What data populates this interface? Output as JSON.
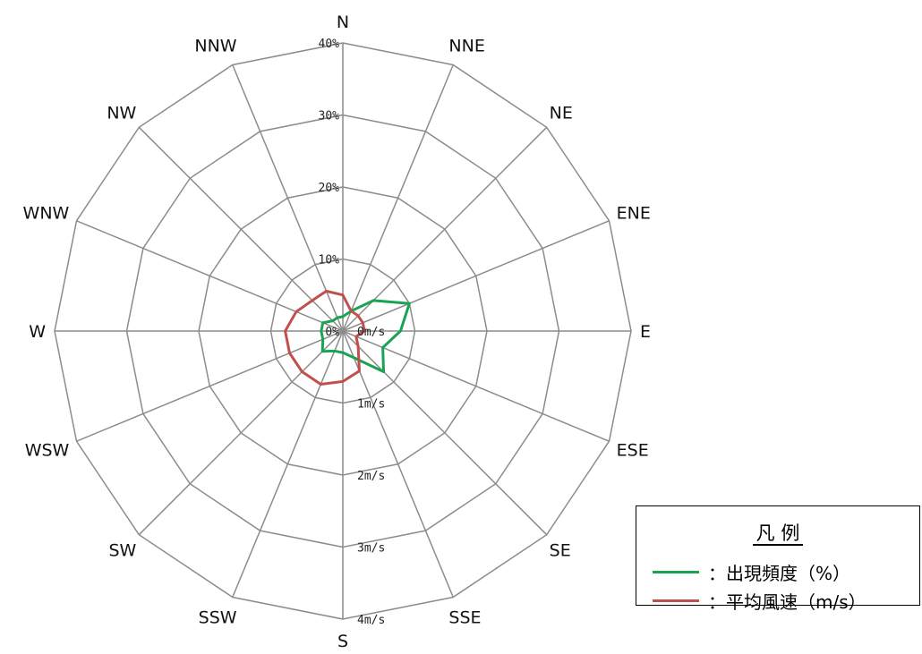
{
  "chart_data": {
    "type": "radar",
    "directions": [
      "N",
      "NNE",
      "NE",
      "ENE",
      "E",
      "ESE",
      "SE",
      "SSE",
      "S",
      "SSW",
      "SW",
      "WSW",
      "W",
      "WNW",
      "NW",
      "NNW"
    ],
    "frequency_ticks": [
      "0%",
      "10%",
      "20%",
      "30%",
      "40%"
    ],
    "speed_ticks": [
      "0m/s",
      "1m/s",
      "2m/s",
      "3m/s",
      "4m/s"
    ],
    "frequency_range": [
      0,
      40
    ],
    "speed_range": [
      0,
      4
    ],
    "grid": true,
    "series": [
      {
        "name": "出現頻度（%）",
        "unit": "%",
        "color": "#1aa352",
        "values": [
          2,
          3,
          6,
          10,
          8,
          6,
          8,
          4,
          3,
          3,
          4,
          3,
          3,
          3,
          2,
          2
        ]
      },
      {
        "name": "平均風速（m/s）",
        "unit": "m/s",
        "color": "#c0504d",
        "values": [
          0.5,
          0.3,
          0.3,
          0.3,
          0.3,
          0.2,
          0.3,
          0.6,
          0.7,
          0.8,
          0.8,
          0.8,
          0.8,
          0.7,
          0.6,
          0.6
        ]
      }
    ]
  },
  "legend": {
    "title": "凡 例",
    "items": [
      {
        "label": "：出現頻度（%）",
        "color": "#1aa352"
      },
      {
        "label": "：平均風速（m/s）",
        "color": "#c0504d"
      }
    ]
  }
}
